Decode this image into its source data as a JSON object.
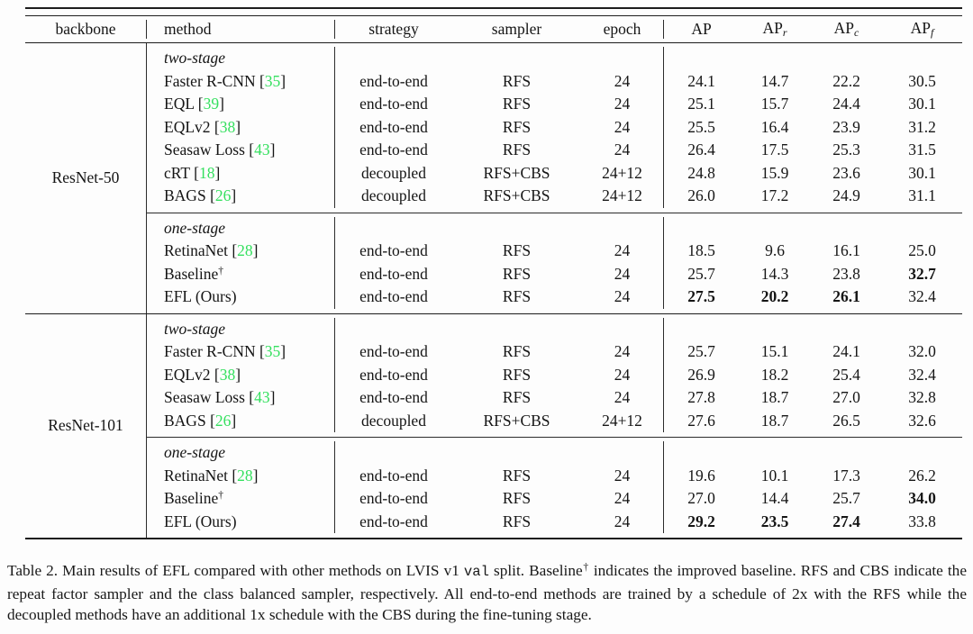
{
  "table": {
    "citation_color": "#35e05f",
    "header": {
      "backbone": "backbone",
      "method": "method",
      "strategy": "strategy",
      "sampler": "sampler",
      "epoch": "epoch",
      "ap": "AP",
      "sub_r": "r",
      "sub_c": "c",
      "sub_f": "f"
    },
    "sections": [
      {
        "backbone": "ResNet-50",
        "groups": [
          {
            "label": "two-stage",
            "rows": [
              {
                "method": "Faster R-CNN",
                "cite": "35",
                "strategy": "end-to-end",
                "sampler": "RFS",
                "epoch": "24",
                "values": {
                  "ap": "24.1",
                  "apr": "14.7",
                  "apc": "22.2",
                  "apf": "30.5"
                },
                "bold": []
              },
              {
                "method": "EQL",
                "cite": "39",
                "strategy": "end-to-end",
                "sampler": "RFS",
                "epoch": "24",
                "values": {
                  "ap": "25.1",
                  "apr": "15.7",
                  "apc": "24.4",
                  "apf": "30.1"
                },
                "bold": []
              },
              {
                "method": "EQLv2",
                "cite": "38",
                "strategy": "end-to-end",
                "sampler": "RFS",
                "epoch": "24",
                "values": {
                  "ap": "25.5",
                  "apr": "16.4",
                  "apc": "23.9",
                  "apf": "31.2"
                },
                "bold": []
              },
              {
                "method": "Seasaw Loss",
                "cite": "43",
                "strategy": "end-to-end",
                "sampler": "RFS",
                "epoch": "24",
                "values": {
                  "ap": "26.4",
                  "apr": "17.5",
                  "apc": "25.3",
                  "apf": "31.5"
                },
                "bold": []
              },
              {
                "method": "cRT",
                "cite": "18",
                "strategy": "decoupled",
                "sampler": "RFS+CBS",
                "epoch": "24+12",
                "values": {
                  "ap": "24.8",
                  "apr": "15.9",
                  "apc": "23.6",
                  "apf": "30.1"
                },
                "bold": []
              },
              {
                "method": "BAGS",
                "cite": "26",
                "strategy": "decoupled",
                "sampler": "RFS+CBS",
                "epoch": "24+12",
                "values": {
                  "ap": "26.0",
                  "apr": "17.2",
                  "apc": "24.9",
                  "apf": "31.1"
                },
                "bold": []
              }
            ]
          },
          {
            "label": "one-stage",
            "rows": [
              {
                "method": "RetinaNet",
                "cite": "28",
                "strategy": "end-to-end",
                "sampler": "RFS",
                "epoch": "24",
                "values": {
                  "ap": "18.5",
                  "apr": "9.6",
                  "apc": "16.1",
                  "apf": "25.0"
                },
                "bold": []
              },
              {
                "method": "Baseline",
                "sup": "†",
                "strategy": "end-to-end",
                "sampler": "RFS",
                "epoch": "24",
                "values": {
                  "ap": "25.7",
                  "apr": "14.3",
                  "apc": "23.8",
                  "apf": "32.7"
                },
                "bold": [
                  "apf"
                ]
              },
              {
                "method": "EFL (Ours)",
                "strategy": "end-to-end",
                "sampler": "RFS",
                "epoch": "24",
                "values": {
                  "ap": "27.5",
                  "apr": "20.2",
                  "apc": "26.1",
                  "apf": "32.4"
                },
                "bold": [
                  "ap",
                  "apr",
                  "apc"
                ]
              }
            ]
          }
        ]
      },
      {
        "backbone": "ResNet-101",
        "groups": [
          {
            "label": "two-stage",
            "rows": [
              {
                "method": "Faster R-CNN",
                "cite": "35",
                "strategy": "end-to-end",
                "sampler": "RFS",
                "epoch": "24",
                "values": {
                  "ap": "25.7",
                  "apr": "15.1",
                  "apc": "24.1",
                  "apf": "32.0"
                },
                "bold": []
              },
              {
                "method": "EQLv2",
                "cite": "38",
                "strategy": "end-to-end",
                "sampler": "RFS",
                "epoch": "24",
                "values": {
                  "ap": "26.9",
                  "apr": "18.2",
                  "apc": "25.4",
                  "apf": "32.4"
                },
                "bold": []
              },
              {
                "method": "Seasaw Loss",
                "cite": "43",
                "strategy": "end-to-end",
                "sampler": "RFS",
                "epoch": "24",
                "values": {
                  "ap": "27.8",
                  "apr": "18.7",
                  "apc": "27.0",
                  "apf": "32.8"
                },
                "bold": []
              },
              {
                "method": "BAGS",
                "cite": "26",
                "strategy": "decoupled",
                "sampler": "RFS+CBS",
                "epoch": "24+12",
                "values": {
                  "ap": "27.6",
                  "apr": "18.7",
                  "apc": "26.5",
                  "apf": "32.6"
                },
                "bold": []
              }
            ]
          },
          {
            "label": "one-stage",
            "rows": [
              {
                "method": "RetinaNet",
                "cite": "28",
                "strategy": "end-to-end",
                "sampler": "RFS",
                "epoch": "24",
                "values": {
                  "ap": "19.6",
                  "apr": "10.1",
                  "apc": "17.3",
                  "apf": "26.2"
                },
                "bold": []
              },
              {
                "method": "Baseline",
                "sup": "†",
                "strategy": "end-to-end",
                "sampler": "RFS",
                "epoch": "24",
                "values": {
                  "ap": "27.0",
                  "apr": "14.4",
                  "apc": "25.7",
                  "apf": "34.0"
                },
                "bold": [
                  "apf"
                ]
              },
              {
                "method": "EFL (Ours)",
                "strategy": "end-to-end",
                "sampler": "RFS",
                "epoch": "24",
                "values": {
                  "ap": "29.2",
                  "apr": "23.5",
                  "apc": "27.4",
                  "apf": "33.8"
                },
                "bold": [
                  "ap",
                  "apr",
                  "apc"
                ]
              }
            ]
          }
        ]
      }
    ]
  },
  "caption": {
    "seg1": "Table 2.  Main results of EFL compared with other methods on LVIS v1 ",
    "mono": "val",
    "seg2": " split.  Baseline",
    "dagger": "†",
    "seg3": " indicates the improved baseline.  RFS and CBS indicate the repeat factor sampler and the class balanced sampler, respectively.  All end-to-end methods are trained by a schedule of 2x with the RFS while the decoupled methods have an additional 1x schedule with the CBS during the fine-tuning stage."
  }
}
